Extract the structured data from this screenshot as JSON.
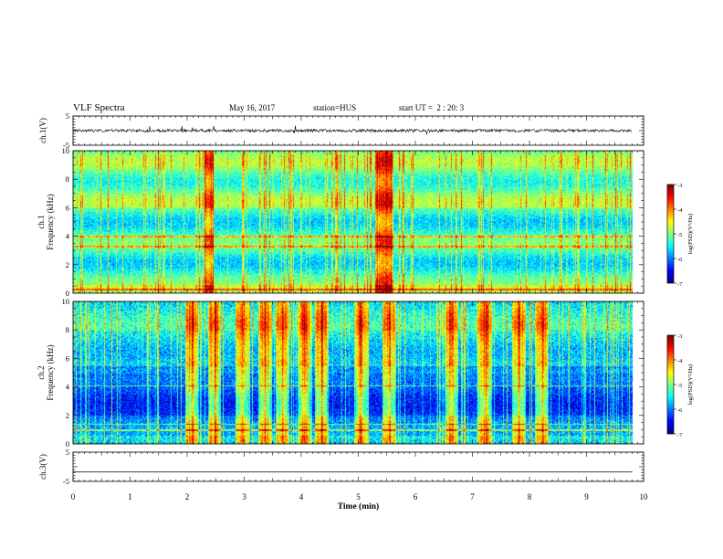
{
  "header": {
    "title": "VLF Spectra",
    "date": "May 16, 2017",
    "station": "station=HUS",
    "start_ut": "start UT =  2 : 20: 3"
  },
  "chart_data": [
    {
      "type": "line",
      "panel": "ch.1 waveform",
      "ylabel": "ch.1(V)",
      "ylim": [
        -5,
        5
      ],
      "yticks": [
        "5",
        "-5"
      ],
      "xlim": [
        0,
        10
      ],
      "trace_level": 0,
      "data_end": 9.8,
      "series": [
        {
          "color": "#000000"
        }
      ]
    },
    {
      "type": "heatmap",
      "panel": "ch.1 spectrogram",
      "ylabel": "ch.1",
      "ylabel2": "Frequency (kHz)",
      "ylim": [
        0,
        10
      ],
      "yticks": [
        "0",
        "2",
        "4",
        "6",
        "8",
        "10"
      ],
      "xlim": [
        0,
        10
      ],
      "data_end": 9.8,
      "colorbar": {
        "label": "log(PSD)(V²/Hz)",
        "range": [
          -7,
          -3
        ],
        "ticks": [
          "-3",
          "-4",
          "-5",
          "-6",
          "-7"
        ]
      }
    },
    {
      "type": "heatmap",
      "panel": "ch.2 spectrogram",
      "ylabel": "ch.2",
      "ylabel2": "Frequency (kHz)",
      "ylim": [
        0,
        10
      ],
      "yticks": [
        "0",
        "2",
        "4",
        "6",
        "8",
        "10"
      ],
      "xlim": [
        0,
        10
      ],
      "data_end": 9.8,
      "colorbar": {
        "label": "log(PSD)(V²/Hz)",
        "range": [
          -7,
          -3
        ],
        "ticks": [
          "-3",
          "-4",
          "-5",
          "-6",
          "-7"
        ]
      }
    },
    {
      "type": "line",
      "panel": "ch.3 waveform",
      "ylabel": "ch.3(V)",
      "ylim": [
        -5,
        5
      ],
      "yticks": [
        "5",
        "-5"
      ],
      "xlim": [
        0,
        10
      ],
      "trace_level": -1.8,
      "data_end": 9.8,
      "xlabel": "Time (min)",
      "xticks": [
        "0",
        "1",
        "2",
        "3",
        "4",
        "5",
        "6",
        "7",
        "8",
        "9",
        "10"
      ],
      "series": [
        {
          "color": "#000000"
        }
      ]
    }
  ]
}
